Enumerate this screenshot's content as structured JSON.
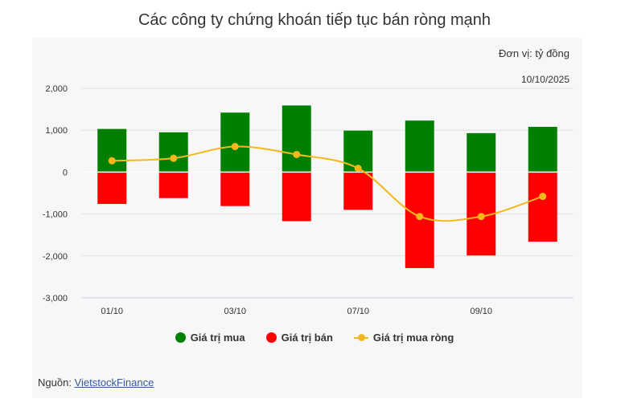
{
  "title": "Các công ty chứng khoán tiếp tục bán ròng mạnh",
  "unit_label": "Đơn vị: tỷ đồng",
  "date_label": "10/10/2025",
  "source": {
    "prefix": "Nguồn:",
    "link_text": "VietstockFinance"
  },
  "colors": {
    "buy": "#008000",
    "sell": "#ff0000",
    "net": "#f5b81c",
    "grid": "#e2e2e2",
    "axis": "#c5d3e3"
  },
  "chart_data": {
    "type": "bar",
    "title": "Các công ty chứng khoán tiếp tục bán ròng mạnh",
    "ylabel": "",
    "xlabel": "",
    "ylim": [
      -3000,
      2000
    ],
    "yticks": [
      2000,
      1000,
      0,
      -1000,
      -2000,
      -3000
    ],
    "ytick_labels": [
      "2,000",
      "1,000",
      "0",
      "-1,000",
      "-2,000",
      "-3,000"
    ],
    "x_tick_labels": [
      "01/10",
      "",
      "03/10",
      "",
      "07/10",
      "",
      "09/10",
      ""
    ],
    "grid": true,
    "legend_position": "bottom",
    "series": [
      {
        "name": "Giá trị mua",
        "type": "bar",
        "values": [
          1030,
          950,
          1420,
          1590,
          990,
          1230,
          930,
          1080
        ]
      },
      {
        "name": "Giá trị bán",
        "type": "bar",
        "values": [
          -760,
          -620,
          -810,
          -1170,
          -900,
          -2290,
          -1990,
          -1660
        ]
      },
      {
        "name": "Giá trị mua ròng",
        "type": "line",
        "values": [
          270,
          330,
          610,
          420,
          90,
          -1060,
          -1060,
          -580
        ]
      }
    ]
  }
}
